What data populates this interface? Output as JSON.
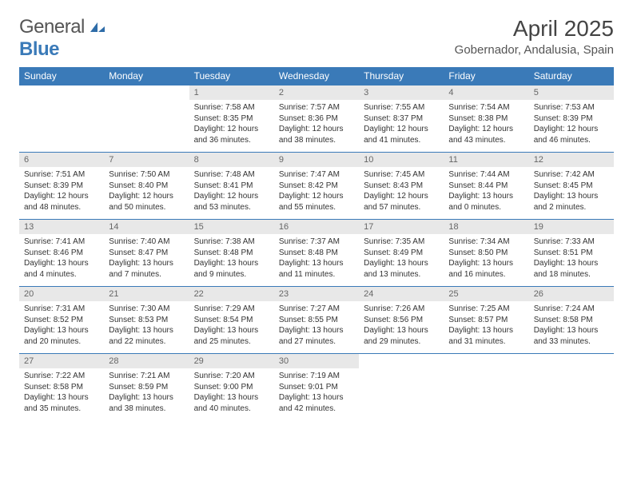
{
  "logo": {
    "text1": "General",
    "text2": "Blue"
  },
  "title": "April 2025",
  "location": "Gobernador, Andalusia, Spain",
  "colors": {
    "header_bg": "#3a7ab8",
    "header_fg": "#ffffff",
    "daynum_bg": "#e8e8e8",
    "daynum_fg": "#666666",
    "body_fg": "#333333",
    "rule": "#3a7ab8"
  },
  "fonts": {
    "title_size": 28,
    "location_size": 15,
    "dayhead_size": 12,
    "daynum_size": 11,
    "cell_size": 10
  },
  "day_names": [
    "Sunday",
    "Monday",
    "Tuesday",
    "Wednesday",
    "Thursday",
    "Friday",
    "Saturday"
  ],
  "weeks": [
    [
      null,
      null,
      {
        "n": "1",
        "sr": "7:58 AM",
        "ss": "8:35 PM",
        "dl": "12 hours and 36 minutes."
      },
      {
        "n": "2",
        "sr": "7:57 AM",
        "ss": "8:36 PM",
        "dl": "12 hours and 38 minutes."
      },
      {
        "n": "3",
        "sr": "7:55 AM",
        "ss": "8:37 PM",
        "dl": "12 hours and 41 minutes."
      },
      {
        "n": "4",
        "sr": "7:54 AM",
        "ss": "8:38 PM",
        "dl": "12 hours and 43 minutes."
      },
      {
        "n": "5",
        "sr": "7:53 AM",
        "ss": "8:39 PM",
        "dl": "12 hours and 46 minutes."
      }
    ],
    [
      {
        "n": "6",
        "sr": "7:51 AM",
        "ss": "8:39 PM",
        "dl": "12 hours and 48 minutes."
      },
      {
        "n": "7",
        "sr": "7:50 AM",
        "ss": "8:40 PM",
        "dl": "12 hours and 50 minutes."
      },
      {
        "n": "8",
        "sr": "7:48 AM",
        "ss": "8:41 PM",
        "dl": "12 hours and 53 minutes."
      },
      {
        "n": "9",
        "sr": "7:47 AM",
        "ss": "8:42 PM",
        "dl": "12 hours and 55 minutes."
      },
      {
        "n": "10",
        "sr": "7:45 AM",
        "ss": "8:43 PM",
        "dl": "12 hours and 57 minutes."
      },
      {
        "n": "11",
        "sr": "7:44 AM",
        "ss": "8:44 PM",
        "dl": "13 hours and 0 minutes."
      },
      {
        "n": "12",
        "sr": "7:42 AM",
        "ss": "8:45 PM",
        "dl": "13 hours and 2 minutes."
      }
    ],
    [
      {
        "n": "13",
        "sr": "7:41 AM",
        "ss": "8:46 PM",
        "dl": "13 hours and 4 minutes."
      },
      {
        "n": "14",
        "sr": "7:40 AM",
        "ss": "8:47 PM",
        "dl": "13 hours and 7 minutes."
      },
      {
        "n": "15",
        "sr": "7:38 AM",
        "ss": "8:48 PM",
        "dl": "13 hours and 9 minutes."
      },
      {
        "n": "16",
        "sr": "7:37 AM",
        "ss": "8:48 PM",
        "dl": "13 hours and 11 minutes."
      },
      {
        "n": "17",
        "sr": "7:35 AM",
        "ss": "8:49 PM",
        "dl": "13 hours and 13 minutes."
      },
      {
        "n": "18",
        "sr": "7:34 AM",
        "ss": "8:50 PM",
        "dl": "13 hours and 16 minutes."
      },
      {
        "n": "19",
        "sr": "7:33 AM",
        "ss": "8:51 PM",
        "dl": "13 hours and 18 minutes."
      }
    ],
    [
      {
        "n": "20",
        "sr": "7:31 AM",
        "ss": "8:52 PM",
        "dl": "13 hours and 20 minutes."
      },
      {
        "n": "21",
        "sr": "7:30 AM",
        "ss": "8:53 PM",
        "dl": "13 hours and 22 minutes."
      },
      {
        "n": "22",
        "sr": "7:29 AM",
        "ss": "8:54 PM",
        "dl": "13 hours and 25 minutes."
      },
      {
        "n": "23",
        "sr": "7:27 AM",
        "ss": "8:55 PM",
        "dl": "13 hours and 27 minutes."
      },
      {
        "n": "24",
        "sr": "7:26 AM",
        "ss": "8:56 PM",
        "dl": "13 hours and 29 minutes."
      },
      {
        "n": "25",
        "sr": "7:25 AM",
        "ss": "8:57 PM",
        "dl": "13 hours and 31 minutes."
      },
      {
        "n": "26",
        "sr": "7:24 AM",
        "ss": "8:58 PM",
        "dl": "13 hours and 33 minutes."
      }
    ],
    [
      {
        "n": "27",
        "sr": "7:22 AM",
        "ss": "8:58 PM",
        "dl": "13 hours and 35 minutes."
      },
      {
        "n": "28",
        "sr": "7:21 AM",
        "ss": "8:59 PM",
        "dl": "13 hours and 38 minutes."
      },
      {
        "n": "29",
        "sr": "7:20 AM",
        "ss": "9:00 PM",
        "dl": "13 hours and 40 minutes."
      },
      {
        "n": "30",
        "sr": "7:19 AM",
        "ss": "9:01 PM",
        "dl": "13 hours and 42 minutes."
      },
      null,
      null,
      null
    ]
  ],
  "labels": {
    "sunrise": "Sunrise:",
    "sunset": "Sunset:",
    "daylight": "Daylight:"
  }
}
